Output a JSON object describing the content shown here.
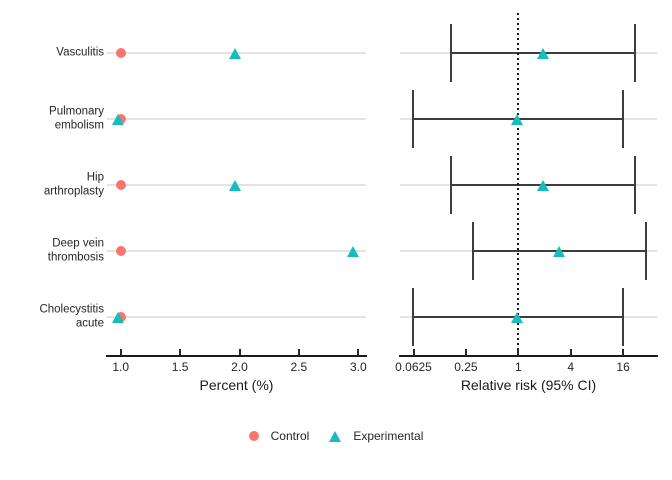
{
  "colors": {
    "control": "#f8766d",
    "experimental": "#17bcbf",
    "gridline": "#e3e3e3",
    "ci": "#3d3d3d",
    "axis": "#1a1a1a",
    "reference_line": "#1a1a1a"
  },
  "legend": {
    "items": [
      {
        "label": "Control",
        "marker": "circle",
        "color": "#f8766d"
      },
      {
        "label": "Experimental",
        "marker": "triangle",
        "color": "#17bcbf"
      }
    ]
  },
  "chart_data": [
    {
      "type": "scatter",
      "panel": "percent",
      "title": "",
      "xlabel": "Percent (%)",
      "xscale": "linear",
      "xlim": [
        0.94,
        3.08
      ],
      "x_tick_labels": [
        "1.0",
        "1.5",
        "2.0",
        "2.5",
        "3.0"
      ],
      "x_tick_values": [
        1.0,
        1.5,
        2.0,
        2.5,
        3.0
      ],
      "grid": "horizontal-row-lines",
      "categories": [
        "Vasculitis",
        "Pulmonary\nembolism",
        "Hip\narthroplasty",
        "Deep vein\nthrombosis",
        "Cholecystitis\nacute"
      ],
      "series": [
        {
          "name": "Control",
          "marker": "circle",
          "color": "#f8766d",
          "values": [
            1.0,
            1.0,
            1.0,
            1.0,
            1.0
          ]
        },
        {
          "name": "Experimental",
          "marker": "triangle",
          "color": "#17bcbf",
          "values": [
            1.97,
            0.98,
            1.97,
            2.96,
            0.98
          ]
        }
      ]
    },
    {
      "type": "scatter",
      "subtype": "forest-plot-ci",
      "panel": "relative-risk",
      "title": "",
      "xlabel": "Relative risk (95% CI)",
      "xscale": "log4",
      "x_tick_labels": [
        "0.0625",
        "0.25",
        "1",
        "4",
        "16"
      ],
      "x_tick_values": [
        0.0625,
        0.25,
        1,
        4,
        16
      ],
      "reference_line_x": 1,
      "grid": "horizontal-row-lines",
      "categories": [
        "Vasculitis",
        "Pulmonary\nembolism",
        "Hip\narthroplasty",
        "Deep vein\nthrombosis",
        "Cholecystitis\nacute"
      ],
      "series": [
        {
          "name": "Experimental",
          "marker": "triangle",
          "color": "#17bcbf",
          "estimates": [
            1.97,
            0.99,
            1.97,
            2.96,
            0.99
          ],
          "ci_low": [
            0.17,
            0.061,
            0.17,
            0.3,
            0.061
          ],
          "ci_high": [
            22,
            16,
            22,
            29,
            16
          ]
        }
      ]
    }
  ]
}
